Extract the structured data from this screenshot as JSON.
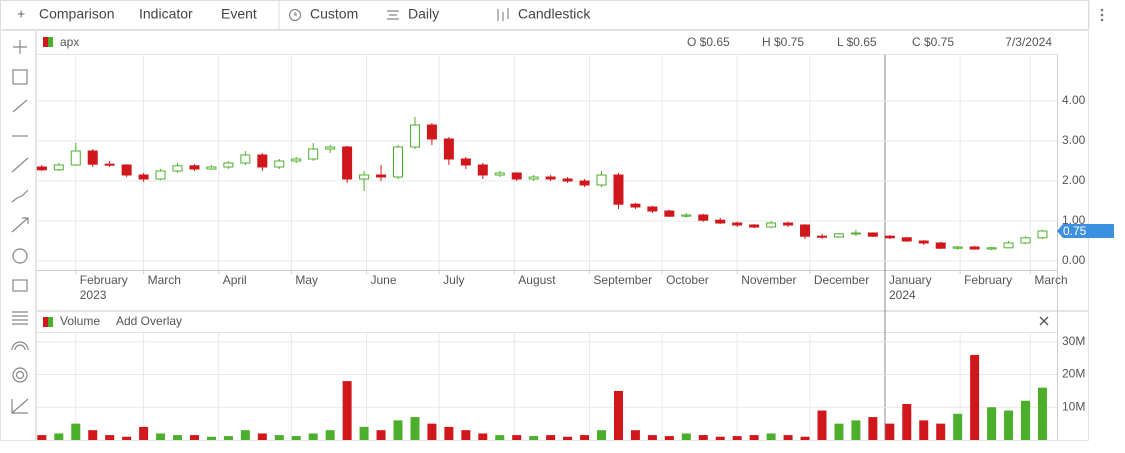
{
  "toolbar": [
    "Comparison",
    "Indicator",
    "Event",
    "Custom",
    "Daily",
    "Candlestick"
  ],
  "chart_data": {
    "type": "candlestick",
    "name": "apx",
    "header": {
      "open": "O $0.65",
      "high": "H $0.75",
      "low": "L $0.65",
      "close": "C $0.75",
      "date": "7/3/2024"
    },
    "up_color": "#4caf2b",
    "down_color": "#d0171b",
    "dates": [
      "2023-01-18",
      "2023-01-25",
      "2023-02-01",
      "2023-02-08",
      "2023-02-15",
      "2023-02-22",
      "2023-03-01",
      "2023-03-08",
      "2023-03-15",
      "2023-03-22",
      "2023-03-29",
      "2023-04-05",
      "2023-04-12",
      "2023-04-19",
      "2023-04-26",
      "2023-05-03",
      "2023-05-10",
      "2023-05-17",
      "2023-05-24",
      "2023-05-31",
      "2023-06-07",
      "2023-06-14",
      "2023-06-21",
      "2023-06-28",
      "2023-07-05",
      "2023-07-12",
      "2023-07-19",
      "2023-07-26",
      "2023-08-02",
      "2023-08-09",
      "2023-08-16",
      "2023-08-23",
      "2023-08-30",
      "2023-09-06",
      "2023-09-13",
      "2023-09-20",
      "2023-09-27",
      "2023-10-04",
      "2023-10-11",
      "2023-10-18",
      "2023-10-25",
      "2023-11-01",
      "2023-11-08",
      "2023-11-15",
      "2023-11-22",
      "2023-11-29",
      "2023-12-06",
      "2023-12-13",
      "2023-12-20",
      "2023-12-27",
      "2024-01-03",
      "2024-01-10",
      "2024-01-17",
      "2024-01-24",
      "2024-01-31",
      "2024-02-07",
      "2024-02-14",
      "2024-02-21",
      "2024-02-28",
      "2024-03-06"
    ],
    "open": [
      2.35,
      2.28,
      2.4,
      2.75,
      2.42,
      2.4,
      2.15,
      2.05,
      2.25,
      2.38,
      2.3,
      2.35,
      2.45,
      2.65,
      2.35,
      2.5,
      2.55,
      2.8,
      2.85,
      2.05,
      2.15,
      2.1,
      2.85,
      3.4,
      3.05,
      2.55,
      2.4,
      2.15,
      2.2,
      2.05,
      2.1,
      2.05,
      2.0,
      1.9,
      2.15,
      1.42,
      1.35,
      1.25,
      1.12,
      1.15,
      1.02,
      0.95,
      0.9,
      0.85,
      0.95,
      0.9,
      0.62,
      0.6,
      0.68,
      0.7,
      0.62,
      0.58,
      0.5,
      0.45,
      0.32,
      0.35,
      0.3,
      0.33,
      0.45,
      0.58
    ],
    "high": [
      2.4,
      2.45,
      2.95,
      2.8,
      2.5,
      2.42,
      2.2,
      2.3,
      2.45,
      2.42,
      2.4,
      2.5,
      2.75,
      2.7,
      2.55,
      2.6,
      2.95,
      2.9,
      2.88,
      2.25,
      2.4,
      2.9,
      3.6,
      3.45,
      3.1,
      2.6,
      2.45,
      2.25,
      2.22,
      2.15,
      2.15,
      2.1,
      2.05,
      2.25,
      2.2,
      1.45,
      1.38,
      1.28,
      1.2,
      1.18,
      1.08,
      0.98,
      0.92,
      1.0,
      0.98,
      0.92,
      0.68,
      0.7,
      0.78,
      0.72,
      0.65,
      0.6,
      0.52,
      0.48,
      0.38,
      0.38,
      0.35,
      0.5,
      0.62,
      0.78
    ],
    "low": [
      2.25,
      2.25,
      2.38,
      2.35,
      2.35,
      2.1,
      1.98,
      2.02,
      2.2,
      2.25,
      2.28,
      2.3,
      2.4,
      2.25,
      2.3,
      2.45,
      2.5,
      2.7,
      1.95,
      1.75,
      2.0,
      2.05,
      2.8,
      2.9,
      2.4,
      2.3,
      2.05,
      2.1,
      2.0,
      2.0,
      2.0,
      1.95,
      1.85,
      1.85,
      1.3,
      1.3,
      1.2,
      1.1,
      1.08,
      0.98,
      0.92,
      0.85,
      0.82,
      0.82,
      0.85,
      0.55,
      0.55,
      0.58,
      0.62,
      0.6,
      0.55,
      0.48,
      0.4,
      0.3,
      0.28,
      0.28,
      0.27,
      0.32,
      0.42,
      0.55
    ],
    "close": [
      2.28,
      2.4,
      2.75,
      2.42,
      2.4,
      2.15,
      2.05,
      2.25,
      2.38,
      2.3,
      2.35,
      2.45,
      2.65,
      2.35,
      2.5,
      2.55,
      2.8,
      2.85,
      2.05,
      2.15,
      2.1,
      2.85,
      3.4,
      3.05,
      2.55,
      2.4,
      2.15,
      2.2,
      2.05,
      2.1,
      2.05,
      2.0,
      1.9,
      2.15,
      1.42,
      1.35,
      1.25,
      1.12,
      1.15,
      1.02,
      0.95,
      0.9,
      0.85,
      0.95,
      0.9,
      0.62,
      0.6,
      0.68,
      0.7,
      0.62,
      0.58,
      0.5,
      0.45,
      0.32,
      0.35,
      0.3,
      0.33,
      0.45,
      0.58,
      0.75
    ],
    "last_price": 0.75,
    "xlim": [
      "2023-01-16",
      "2024-03-12"
    ],
    "xticks": [
      {
        "value": "2023-02-01",
        "label": "February"
      },
      {
        "value": "2023-03-01",
        "label": "March"
      },
      {
        "value": "2023-04-01",
        "label": "April"
      },
      {
        "value": "2023-05-01",
        "label": "May"
      },
      {
        "value": "2023-06-01",
        "label": "June"
      },
      {
        "value": "2023-07-01",
        "label": "July"
      },
      {
        "value": "2023-08-01",
        "label": "August"
      },
      {
        "value": "2023-09-01",
        "label": "September"
      },
      {
        "value": "2023-10-01",
        "label": "October"
      },
      {
        "value": "2023-11-01",
        "label": "November"
      },
      {
        "value": "2023-12-01",
        "label": "December"
      },
      {
        "value": "2024-01-01",
        "label": "January"
      },
      {
        "value": "2024-02-01",
        "label": "February"
      },
      {
        "value": "2024-03-01",
        "label": "March"
      }
    ],
    "year_labels": [
      {
        "value": "2023-02-01",
        "label": "2023"
      },
      {
        "value": "2024-01-01",
        "label": "2024"
      }
    ],
    "ylim": [
      -0.225,
      5.15
    ],
    "yticks": [
      {
        "value": 0,
        "label": "0.00"
      },
      {
        "value": 1,
        "label": "1.00"
      },
      {
        "value": 2,
        "label": "2.00"
      },
      {
        "value": 3,
        "label": "3.00"
      },
      {
        "value": 4,
        "label": "4.00"
      }
    ],
    "grid": true,
    "volume": {
      "label": "Volume",
      "overlay": "Add Overlay",
      "values": [
        1500000,
        2000000,
        5000000,
        3000000,
        1500000,
        1000000,
        4000000,
        2000000,
        1500000,
        1500000,
        1000000,
        1200000,
        3000000,
        2000000,
        1500000,
        1200000,
        2000000,
        3000000,
        18000000,
        4000000,
        3000000,
        6000000,
        7000000,
        5000000,
        4000000,
        3000000,
        2000000,
        1500000,
        1500000,
        1200000,
        1500000,
        1000000,
        1500000,
        3000000,
        15000000,
        3000000,
        1500000,
        1200000,
        2000000,
        1500000,
        1000000,
        1200000,
        1500000,
        2000000,
        1500000,
        1000000,
        9000000,
        5000000,
        6000000,
        7000000,
        5000000,
        11000000,
        6000000,
        5000000,
        8000000,
        26000000,
        10000000,
        9000000,
        12000000,
        16000000
      ],
      "ylim": [
        0,
        32700000
      ],
      "yticks": [
        {
          "value": 10000000,
          "label": "10M"
        },
        {
          "value": 20000000,
          "label": "20M"
        },
        {
          "value": 30000000,
          "label": "30M"
        }
      ]
    }
  }
}
